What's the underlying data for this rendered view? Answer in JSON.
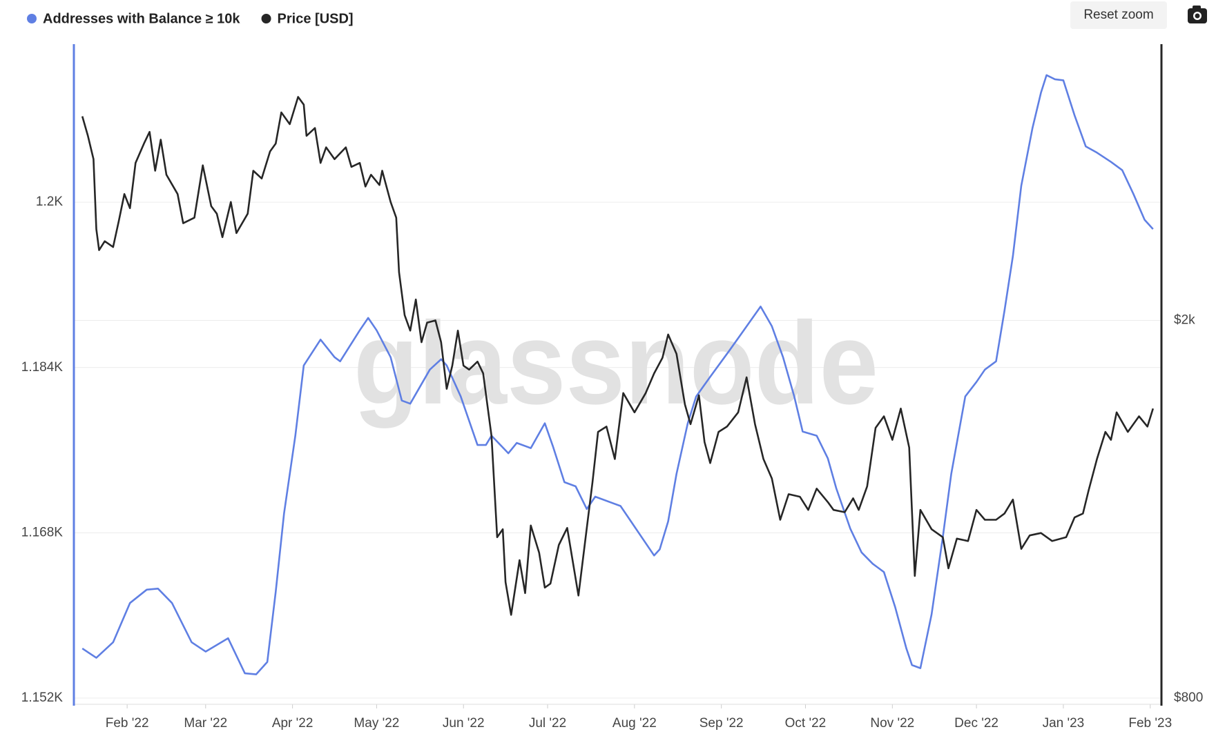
{
  "chart_data": {
    "type": "line",
    "watermark": "glassnode",
    "reset_button": "Reset zoom",
    "xlim": [
      12,
      400
    ],
    "xticks": [
      {
        "value": 31,
        "label": "Feb '22"
      },
      {
        "value": 59,
        "label": "Mar '22"
      },
      {
        "value": 90,
        "label": "Apr '22"
      },
      {
        "value": 120,
        "label": "May '22"
      },
      {
        "value": 151,
        "label": "Jun '22"
      },
      {
        "value": 181,
        "label": "Jul '22"
      },
      {
        "value": 212,
        "label": "Aug '22"
      },
      {
        "value": 243,
        "label": "Sep '22"
      },
      {
        "value": 273,
        "label": "Oct '22"
      },
      {
        "value": 304,
        "label": "Nov '22"
      },
      {
        "value": 334,
        "label": "Dec '22"
      },
      {
        "value": 365,
        "label": "Jan '23"
      },
      {
        "value": 396,
        "label": "Feb '23"
      }
    ],
    "ylim": [
      1151.4,
      1215.3
    ],
    "yticks": [
      {
        "value": 1152,
        "label": "1.152K"
      },
      {
        "value": 1168,
        "label": "1.168K"
      },
      {
        "value": 1184,
        "label": "1.184K"
      },
      {
        "value": 1200,
        "label": "1.2K"
      }
    ],
    "y2lim": [
      788,
      3910
    ],
    "y2log": true,
    "y2ticks": [
      {
        "value": 800,
        "label": "$800"
      },
      {
        "value": 2000,
        "label": "$2k"
      }
    ],
    "grid": true,
    "legend": "top-left",
    "series": [
      {
        "name": "Addresses with Balance ≥ 10k",
        "color": "#5f7fe3",
        "x": [
          15,
          20,
          26,
          32,
          38,
          42,
          47,
          54,
          59,
          67,
          73,
          77,
          81,
          84,
          87,
          91,
          94,
          100,
          105,
          107,
          114,
          117,
          120,
          125,
          129,
          132,
          139,
          143,
          145,
          150,
          156,
          159,
          161,
          167,
          170,
          175,
          180,
          183,
          187,
          191,
          195,
          198,
          207,
          211,
          219,
          221,
          224,
          227,
          231,
          234,
          239,
          246,
          251,
          257,
          261,
          265,
          269,
          272,
          277,
          281,
          284,
          289,
          293,
          297,
          301,
          305,
          309,
          311,
          314,
          318,
          322,
          325,
          330,
          334,
          337,
          341,
          344,
          347,
          350,
          354,
          357,
          359,
          362,
          365,
          369,
          373,
          377,
          382,
          386,
          390,
          394,
          397
        ],
        "values": [
          1156.8,
          1155.9,
          1157.4,
          1161.2,
          1162.5,
          1162.6,
          1161.2,
          1157.4,
          1156.5,
          1157.8,
          1154.4,
          1154.3,
          1155.5,
          1162.3,
          1169.9,
          1177.4,
          1184.2,
          1186.7,
          1185.0,
          1184.6,
          1187.6,
          1188.8,
          1187.6,
          1185.0,
          1180.8,
          1180.5,
          1183.8,
          1184.8,
          1184.2,
          1181.2,
          1176.5,
          1176.5,
          1177.4,
          1175.7,
          1176.7,
          1176.2,
          1178.6,
          1176.3,
          1172.9,
          1172.5,
          1170.3,
          1171.5,
          1170.6,
          1169.0,
          1165.8,
          1166.4,
          1169.1,
          1173.7,
          1178.6,
          1181.2,
          1183.1,
          1185.7,
          1187.6,
          1189.9,
          1188.0,
          1185.0,
          1181.2,
          1177.8,
          1177.4,
          1175.2,
          1172.3,
          1168.4,
          1166.1,
          1165.0,
          1164.2,
          1160.8,
          1156.8,
          1155.2,
          1154.9,
          1160.1,
          1167.6,
          1173.7,
          1181.2,
          1182.6,
          1183.8,
          1184.6,
          1189.5,
          1194.8,
          1201.6,
          1207.2,
          1210.6,
          1212.3,
          1211.9,
          1211.8,
          1208.4,
          1205.4,
          1204.8,
          1203.9,
          1203.1,
          1200.8,
          1198.3,
          1197.4
        ]
      },
      {
        "name": "Price [USD]",
        "color": "#262626",
        "axis": "y2",
        "x": [
          15,
          17,
          19,
          20,
          21,
          23,
          26,
          28,
          30,
          32,
          34,
          37,
          39,
          41,
          43,
          45,
          49,
          51,
          55,
          58,
          61,
          63,
          65,
          68,
          70,
          74,
          76,
          79,
          82,
          84,
          86,
          89,
          92,
          94,
          95,
          98,
          100,
          102,
          105,
          109,
          111,
          114,
          116,
          118,
          121,
          122,
          125,
          127,
          128,
          130,
          132,
          134,
          136,
          138,
          141,
          143,
          145,
          147,
          149,
          151,
          153,
          156,
          158,
          161,
          163,
          165,
          166,
          168,
          171,
          173,
          175,
          178,
          180,
          182,
          185,
          188,
          192,
          195,
          197,
          199,
          202,
          205,
          208,
          212,
          216,
          219,
          222,
          224,
          227,
          230,
          232,
          235,
          237,
          239,
          242,
          245,
          249,
          252,
          255,
          258,
          261,
          264,
          267,
          271,
          274,
          277,
          281,
          283,
          287,
          290,
          292,
          295,
          298,
          301,
          304,
          307,
          310,
          312,
          314,
          318,
          322,
          324,
          327,
          331,
          334,
          337,
          341,
          344,
          347,
          350,
          353,
          357,
          361,
          366,
          369,
          372,
          374,
          377,
          380,
          382,
          384,
          388,
          392,
          395,
          397
        ],
        "values": [
          3282,
          3130,
          2958,
          2496,
          2372,
          2424,
          2390,
          2543,
          2718,
          2626,
          2931,
          3072,
          3160,
          2876,
          3101,
          2848,
          2718,
          2532,
          2566,
          2914,
          2639,
          2591,
          2448,
          2666,
          2472,
          2591,
          2876,
          2822,
          3014,
          3072,
          3313,
          3220,
          3440,
          3376,
          3130,
          3190,
          2931,
          3044,
          2958,
          3044,
          2903,
          2931,
          2768,
          2848,
          2778,
          2876,
          2666,
          2566,
          2248,
          2026,
          1951,
          2104,
          1897,
          1989,
          2000,
          1897,
          1694,
          1792,
          1951,
          1792,
          1775,
          1810,
          1759,
          1511,
          1182,
          1205,
          1060,
          979,
          1118,
          1032,
          1216,
          1138,
          1046,
          1056,
          1160,
          1209,
          1026,
          1209,
          1350,
          1526,
          1546,
          1429,
          1677,
          1600,
          1677,
          1759,
          1827,
          1933,
          1844,
          1631,
          1555,
          1668,
          1489,
          1415,
          1526,
          1546,
          1600,
          1742,
          1555,
          1429,
          1363,
          1233,
          1312,
          1304,
          1263,
          1330,
          1287,
          1263,
          1256,
          1299,
          1263,
          1337,
          1541,
          1585,
          1497,
          1615,
          1469,
          1076,
          1263,
          1205,
          1182,
          1096,
          1178,
          1171,
          1263,
          1233,
          1233,
          1252,
          1295,
          1149,
          1187,
          1194,
          1171,
          1182,
          1240,
          1252,
          1324,
          1429,
          1526,
          1497,
          1600,
          1526,
          1585,
          1546,
          1615
        ]
      }
    ]
  }
}
